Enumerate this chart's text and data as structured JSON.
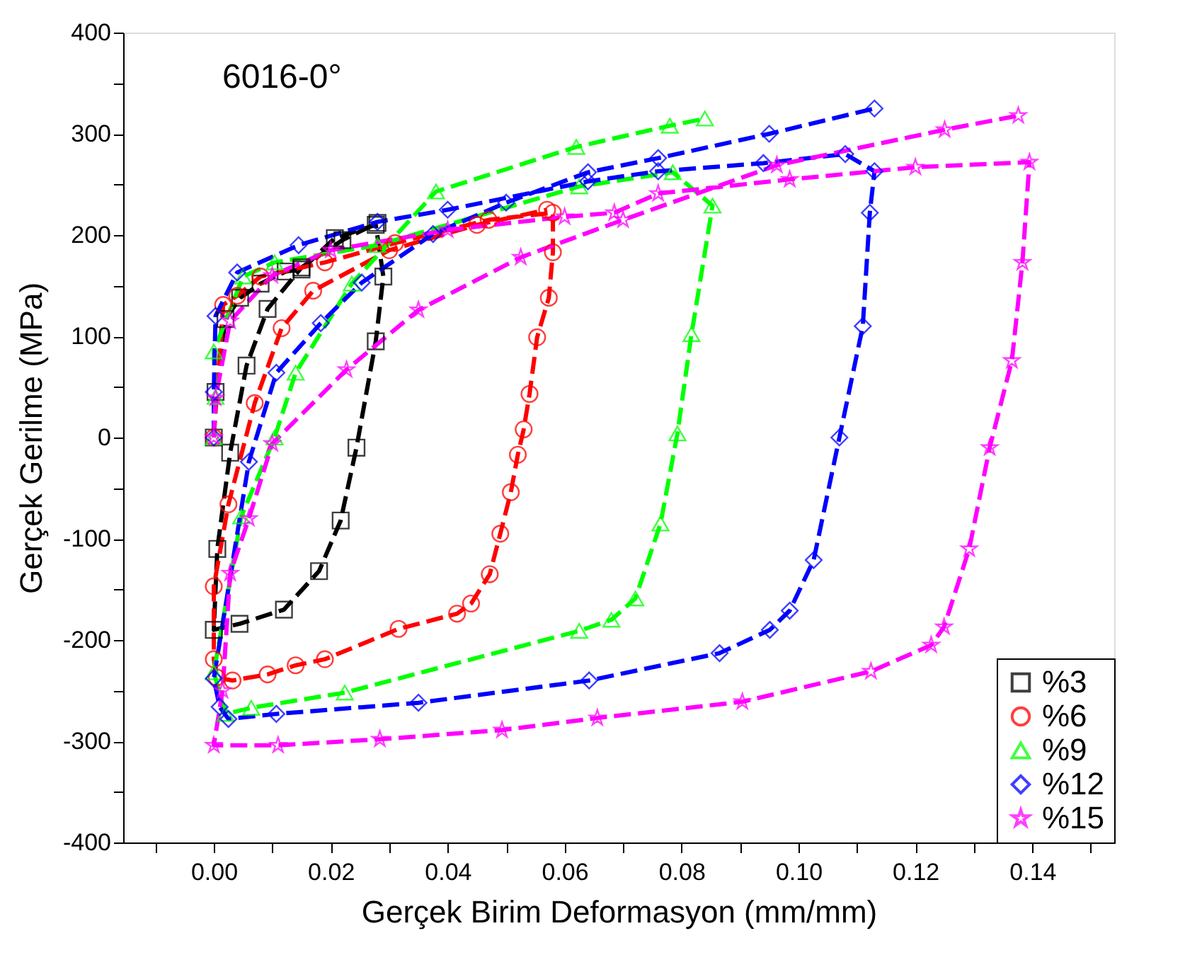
{
  "chart_data": {
    "type": "line",
    "xlabel": "Gerçek Birim Deformasyon (mm/mm)",
    "ylabel": "Gerçek Gerilme (MPa)",
    "annotations": [
      "6016-0°"
    ],
    "xlim": [
      -0.0155,
      0.154
    ],
    "ylim": [
      -400,
      400
    ],
    "xticks": [
      {
        "value": -0.01,
        "label": null
      },
      {
        "value": 0,
        "label": "0.00"
      },
      {
        "value": 0.01,
        "label": null
      },
      {
        "value": 0.02,
        "label": "0.02"
      },
      {
        "value": 0.03,
        "label": null
      },
      {
        "value": 0.04,
        "label": "0.04"
      },
      {
        "value": 0.05,
        "label": null
      },
      {
        "value": 0.06,
        "label": "0.06"
      },
      {
        "value": 0.07,
        "label": null
      },
      {
        "value": 0.08,
        "label": "0.08"
      },
      {
        "value": 0.09,
        "label": null
      },
      {
        "value": 0.1,
        "label": "0.10"
      },
      {
        "value": 0.11,
        "label": null
      },
      {
        "value": 0.12,
        "label": "0.12"
      },
      {
        "value": 0.13,
        "label": null
      },
      {
        "value": 0.14,
        "label": "0.14"
      },
      {
        "value": 0.15,
        "label": null
      }
    ],
    "yticks": [
      -400,
      {
        "value": -350,
        "label": null
      },
      -300,
      {
        "value": -250,
        "label": null
      },
      -200,
      {
        "value": -150,
        "label": null
      },
      -100,
      {
        "value": -50,
        "label": null
      },
      0,
      {
        "value": 50,
        "label": null
      },
      100,
      {
        "value": 150,
        "label": null
      },
      200,
      {
        "value": 250,
        "label": null
      },
      300,
      {
        "value": 350,
        "label": null
      },
      400
    ],
    "grid": false,
    "legend": "bottom right",
    "line_style": "dashed",
    "series": [
      {
        "name": "%3",
        "color": "#000000",
        "marker": "square",
        "x": [
          0,
          0.0003,
          0.002,
          0.0045,
          0.008,
          0.0123,
          0.015,
          0.0207,
          0.0277,
          0.029,
          0.0277,
          0.0244,
          0.0217,
          0.018,
          0.012,
          0.0044,
          0,
          0.0006,
          0.0028,
          0.0056,
          0.0092,
          0.015,
          0.022,
          0.028
        ],
        "values": [
          0,
          45,
          117,
          138,
          152,
          164,
          166,
          197,
          210,
          159,
          95,
          -10,
          -82,
          -132,
          -170,
          -184,
          -190,
          -110,
          -15,
          71,
          127,
          168,
          195,
          212
        ]
      },
      {
        "name": "%6",
        "color": "#ff0000",
        "marker": "circle",
        "x": [
          0,
          0.0016,
          0.004,
          0.008,
          0.019,
          0.031,
          0.047,
          0.058,
          0.058,
          0.0573,
          0.0553,
          0.054,
          0.053,
          0.052,
          0.0508,
          0.049,
          0.0472,
          0.044,
          0.0416,
          0.0316,
          0.019,
          0.014,
          0.0092,
          0.0032,
          0.0005,
          0,
          0,
          0.0025,
          0.007,
          0.0116,
          0.017,
          0.03,
          0.045,
          0.057
        ],
        "values": [
          0,
          131,
          140,
          159,
          173,
          192,
          215,
          222,
          183,
          138,
          99,
          43,
          8,
          -17,
          -54,
          -95,
          -135,
          -164,
          -174,
          -189,
          -219,
          -225,
          -234,
          -240,
          -237,
          -219,
          -147,
          -66,
          34,
          108,
          145,
          185,
          210,
          225
        ]
      },
      {
        "name": "%9",
        "color": "#00ff00",
        "marker": "triangle",
        "x": [
          0,
          0.0003,
          0,
          0.005,
          0.0104,
          0.028,
          0.0625,
          0.0785,
          0.0853,
          0.0817,
          0.0793,
          0.0764,
          0.0721,
          0.068,
          0.0625,
          0.0224,
          0.0064,
          0.002,
          0,
          0.0047,
          0.0104,
          0.014,
          0.0236,
          0.038,
          0.062,
          0.078,
          0.084
        ],
        "values": [
          0,
          40,
          85,
          159,
          173,
          190,
          248,
          262,
          229,
          102,
          4,
          -85,
          -159,
          -180,
          -191,
          -252,
          -267,
          -273,
          -232,
          -78,
          0,
          64,
          152,
          243,
          287,
          308,
          315
        ]
      },
      {
        "name": "%12",
        "color": "#0000ff",
        "marker": "diamond",
        "x": [
          0,
          0,
          0.0003,
          0.004,
          0.0145,
          0.028,
          0.04,
          0.064,
          0.076,
          0.094,
          0.108,
          0.113,
          0.1122,
          0.111,
          0.107,
          0.1026,
          0.0985,
          0.0951,
          0.0865,
          0.0642,
          0.035,
          0.0107,
          0.0025,
          0.001,
          0,
          0.006,
          0.0107,
          0.0183,
          0.0253,
          0.0375,
          0.05,
          0.064,
          0.076,
          0.095,
          0.113
        ],
        "values": [
          0,
          45,
          120,
          163,
          190,
          213,
          225,
          253,
          263,
          271,
          280,
          263,
          222,
          110,
          0,
          -121,
          -171,
          -190,
          -213,
          -240,
          -262,
          -273,
          -278,
          -266,
          -238,
          -24,
          64,
          113,
          153,
          201,
          232,
          262,
          276,
          300,
          325
        ]
      },
      {
        "name": "%15",
        "color": "#ff00ff",
        "marker": "star",
        "x": [
          0,
          0.0003,
          0.0028,
          0.01,
          0.02,
          0.04,
          0.06,
          0.0685,
          0.076,
          0.0985,
          0.12,
          0.1395,
          0.1383,
          0.1365,
          0.1327,
          0.1292,
          0.1249,
          0.1227,
          0.1124,
          0.0904,
          0.0656,
          0.0493,
          0.0284,
          0.011,
          0,
          0.0015,
          0.0028,
          0.006,
          0.01,
          0.0227,
          0.035,
          0.0525,
          0.07,
          0.0963,
          0.125,
          0.1376
        ],
        "values": [
          0,
          39,
          115,
          160,
          185,
          205,
          218,
          222,
          241,
          255,
          267,
          272,
          173,
          76,
          -10,
          -110,
          -187,
          -205,
          -231,
          -261,
          -277,
          -289,
          -298,
          -304,
          -304,
          -250,
          -134,
          -80,
          -6,
          67,
          126,
          178,
          215,
          269,
          304,
          318
        ]
      }
    ]
  }
}
